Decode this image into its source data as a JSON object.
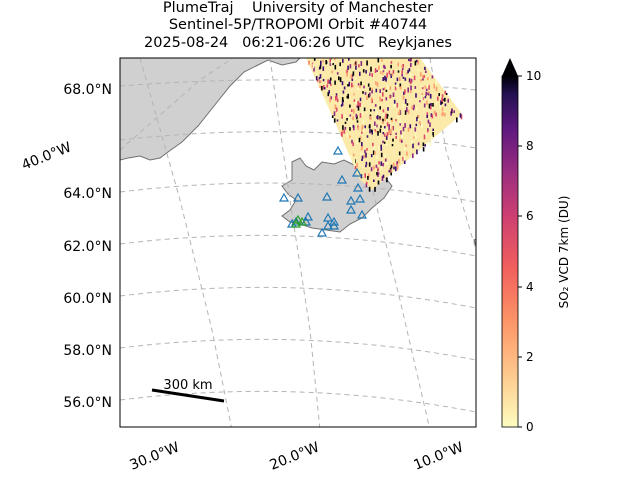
{
  "title": {
    "line1": "PlumeTraj    University of Manchester",
    "line2": "Sentinel-5P/TROPOMI Orbit #40744",
    "line3": "2025-08-24   06:21-06:26 UTC   Reykjanes"
  },
  "map": {
    "lat_labels": [
      "68.0°N",
      "64.0°N",
      "62.0°N",
      "60.0°N",
      "58.0°N",
      "56.0°N"
    ],
    "lon_labels": [
      "40.0°W",
      "30.0°W",
      "20.0°W",
      "10.0°W"
    ],
    "scale_bar_label": "300 km",
    "colors": {
      "land": "#d0d0d0",
      "coast": "#707070",
      "grid": "#b4b4b4",
      "volcano_marker": "#1f77b4",
      "active_volcano_marker": "#2ca02c"
    }
  },
  "colorbar": {
    "label": "SO₂ VCD 7km (DU)",
    "ticks": [
      "0",
      "2",
      "4",
      "6",
      "8",
      "10"
    ],
    "min": 0,
    "max": 10,
    "colormap": "magma_r"
  }
}
